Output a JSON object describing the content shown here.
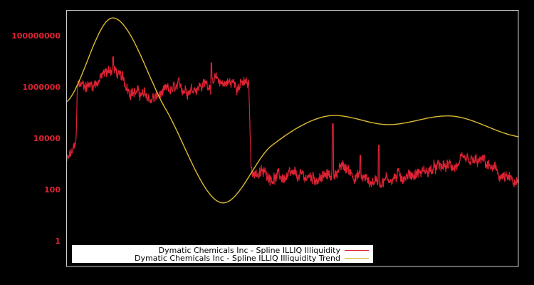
{
  "colors": {
    "background": "#000000",
    "frame": "#cccccc",
    "tick_label": "#dd2233",
    "series": "#dd2233",
    "trend": "#ddbb33",
    "legend_bg": "#ffffff",
    "legend_text": "#000000"
  },
  "chart_data": {
    "type": "line",
    "title": "",
    "xlabel": "",
    "ylabel": "",
    "yscale": "log",
    "ylim": [
      0.1,
      1000000000
    ],
    "grid": false,
    "legend_position": "bottom-left inside",
    "y_ticks": [
      {
        "value": 100000000,
        "label": "100000000"
      },
      {
        "value": 1000000,
        "label": "1000000"
      },
      {
        "value": 10000,
        "label": "10000"
      },
      {
        "value": 100,
        "label": "100"
      },
      {
        "value": 1,
        "label": "1"
      }
    ],
    "x_range_normalized": [
      0,
      1
    ],
    "series": [
      {
        "name": "Dymatic Chemicals Inc - Spline ILLIQ Illiquidity",
        "color": "#dd2233",
        "style": "noisy",
        "noise_log10_amplitude": 0.35,
        "anchors_x_log10": [
          [
            0.002,
            3.14
          ],
          [
            0.02,
            3.69
          ],
          [
            0.023,
            6.06
          ],
          [
            0.058,
            6.11
          ],
          [
            0.102,
            6.75
          ],
          [
            0.13,
            6.06
          ],
          [
            0.184,
            5.5
          ],
          [
            0.231,
            5.83
          ],
          [
            0.326,
            6.19
          ],
          [
            0.397,
            6.11
          ],
          [
            0.403,
            5.95
          ],
          [
            0.408,
            2.72
          ],
          [
            0.483,
            2.44
          ],
          [
            0.578,
            2.5
          ],
          [
            0.61,
            2.86
          ],
          [
            0.672,
            2.31
          ],
          [
            0.798,
            2.72
          ],
          [
            0.861,
            2.94
          ],
          [
            0.924,
            3.06
          ],
          [
            0.956,
            2.58
          ],
          [
            1.0,
            2.11
          ]
        ],
        "spikes_x_log10": [
          [
            0.102,
            7.17
          ],
          [
            0.32,
            6.94
          ],
          [
            0.589,
            4.56
          ],
          [
            0.65,
            3.33
          ],
          [
            0.691,
            3.72
          ]
        ]
      },
      {
        "name": "Dymatic Chemicals Inc - Spline ILLIQ Illiquidity Trend",
        "color": "#ddbb33",
        "style": "smooth",
        "anchors_x_log10": [
          [
            0.0,
            5.42
          ],
          [
            0.102,
            8.69
          ],
          [
            0.216,
            5.22
          ],
          [
            0.339,
            1.5
          ],
          [
            0.452,
            3.69
          ],
          [
            0.575,
            4.86
          ],
          [
            0.712,
            4.53
          ],
          [
            0.855,
            4.86
          ],
          [
            1.0,
            4.06
          ]
        ]
      }
    ]
  },
  "legend": {
    "items": [
      {
        "label": "Dymatic Chemicals Inc - Spline ILLIQ Illiquidity",
        "color": "#dd2233"
      },
      {
        "label": "Dymatic Chemicals Inc - Spline ILLIQ Illiquidity Trend",
        "color": "#ddbb33"
      }
    ]
  }
}
